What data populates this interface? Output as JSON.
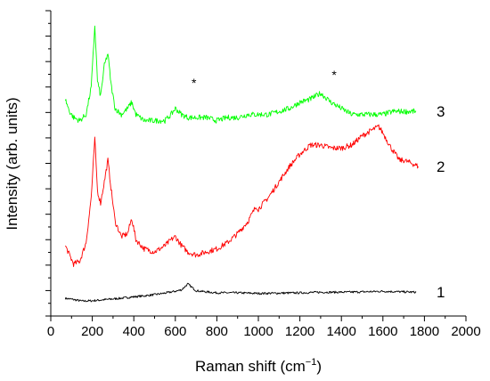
{
  "chart_data": {
    "type": "line",
    "xlabel_main": "Raman shift (cm",
    "xlabel_sup": "−1",
    "xlabel_end": ")",
    "ylabel": "Intensity (arb. units)",
    "xlim": [
      0,
      2000
    ],
    "ylim": [
      0,
      100
    ],
    "x_ticks": [
      0,
      200,
      400,
      600,
      800,
      1000,
      1200,
      1400,
      1600,
      1800,
      2000
    ],
    "x_tick_labels": [
      "0",
      "200",
      "400",
      "600",
      "800",
      "1000",
      "1200",
      "1400",
      "1600",
      "1800",
      "2000"
    ],
    "y_tick_labels_shown": false,
    "grid": false,
    "series": [
      {
        "label": "1",
        "color": "#000000",
        "x": [
          70,
          100,
          150,
          200,
          250,
          300,
          350,
          400,
          450,
          500,
          550,
          600,
          630,
          660,
          680,
          700,
          750,
          800,
          900,
          1000,
          1100,
          1200,
          1300,
          1400,
          1500,
          1600,
          1700,
          1760
        ],
        "y": [
          5.8,
          5.5,
          4.9,
          5.0,
          5.3,
          5.6,
          5.9,
          6.3,
          6.6,
          7.0,
          7.5,
          8.1,
          8.6,
          10.5,
          9.4,
          8.3,
          7.9,
          7.6,
          7.6,
          7.4,
          7.5,
          7.6,
          7.8,
          7.8,
          7.9,
          8.1,
          7.9,
          7.8
        ]
      },
      {
        "label": "2",
        "color": "#ff0000",
        "x": [
          70,
          90,
          110,
          140,
          170,
          195,
          212,
          225,
          240,
          258,
          275,
          290,
          310,
          340,
          370,
          390,
          410,
          450,
          500,
          550,
          580,
          600,
          630,
          660,
          700,
          750,
          800,
          850,
          900,
          950,
          990,
          1000,
          1050,
          1100,
          1150,
          1200,
          1250,
          1300,
          1350,
          1400,
          1450,
          1500,
          1550,
          1580,
          1600,
          1640,
          1680,
          1700,
          1740,
          1770
        ],
        "y": [
          23,
          20,
          17,
          18,
          24,
          39,
          58,
          41,
          37,
          44,
          51,
          42,
          31,
          26,
          27,
          32,
          25,
          22,
          21,
          23,
          25,
          26,
          23,
          21,
          20,
          21,
          22,
          24,
          27,
          31,
          36,
          35,
          39,
          44,
          49,
          53,
          56,
          56,
          55,
          55,
          56,
          59,
          61,
          62,
          60,
          55,
          51,
          51,
          50,
          49
        ]
      },
      {
        "label": "3",
        "color": "#00ff00",
        "x": [
          70,
          90,
          110,
          140,
          170,
          195,
          212,
          225,
          240,
          258,
          275,
          290,
          310,
          340,
          370,
          390,
          410,
          450,
          500,
          550,
          580,
          600,
          630,
          660,
          700,
          750,
          800,
          850,
          900,
          950,
          1000,
          1050,
          1100,
          1150,
          1200,
          1250,
          1300,
          1350,
          1400,
          1450,
          1500,
          1550,
          1600,
          1650,
          1700,
          1760
        ],
        "y": [
          71,
          67,
          65,
          64,
          66,
          75,
          95,
          77,
          72,
          82,
          86,
          76,
          68,
          66,
          68,
          70,
          66,
          64,
          64,
          64,
          66,
          68,
          66,
          65,
          65,
          65,
          64,
          65,
          65,
          66,
          66,
          66,
          67,
          68,
          70,
          71,
          73,
          70,
          68,
          66,
          66,
          66,
          66,
          67,
          67,
          67
        ]
      }
    ],
    "annotations": [
      {
        "text": "*",
        "x": 690,
        "y": 75
      },
      {
        "text": "*",
        "x": 1365,
        "y": 77.5
      }
    ]
  }
}
